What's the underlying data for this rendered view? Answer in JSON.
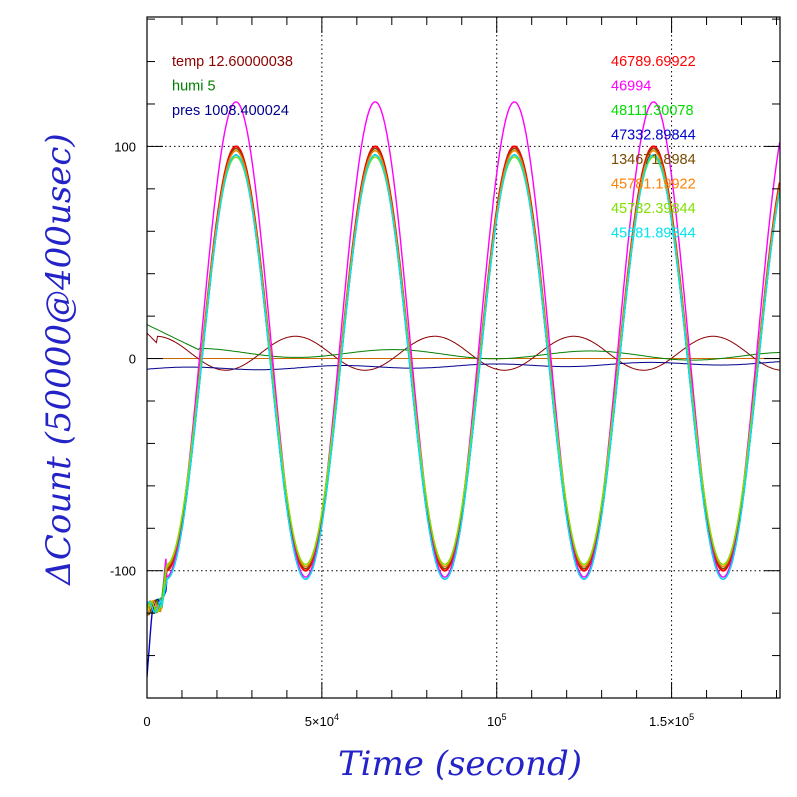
{
  "chart_data": {
    "type": "line",
    "xlabel": "Time (second)",
    "ylabel": "ΔCount (50000@400usec)",
    "xlim": [
      0,
      181000
    ],
    "ylim": [
      -160,
      161
    ],
    "x_ticks": [
      {
        "value": 0,
        "label": "0",
        "exp": ""
      },
      {
        "value": 50000,
        "label": "5×10",
        "exp": "4"
      },
      {
        "value": 100000,
        "label": "10",
        "exp": "5"
      },
      {
        "value": 150000,
        "label": "1.5×10",
        "exp": "5"
      }
    ],
    "y_ticks": [
      {
        "value": 100,
        "label": "100"
      },
      {
        "value": 0,
        "label": "0"
      },
      {
        "value": -100,
        "label": "-100"
      }
    ],
    "grid": "dotted",
    "legend_left": [
      {
        "text": "temp 12.60000038",
        "color": "#8b0000"
      },
      {
        "text": "humi 5",
        "color": "#008000"
      },
      {
        "text": "pres 1008.400024",
        "color": "#00008b"
      }
    ],
    "legend_right": [
      {
        "text": "46789.69922",
        "color": "#ff0000"
      },
      {
        "text": "46994",
        "color": "#ff00ff"
      },
      {
        "text": "48111.30078",
        "color": "#00dd00"
      },
      {
        "text": "47332.89844",
        "color": "#0000cc"
      },
      {
        "text": "134671.8984",
        "color": "#7a4a00"
      },
      {
        "text": "45781.19922",
        "color": "#ff8000"
      },
      {
        "text": "45732.39844",
        "color": "#80e000"
      },
      {
        "text": "45681.89844",
        "color": "#00e5ee"
      }
    ],
    "oscillation": {
      "x_zero_up": 15500,
      "period": 39800,
      "start_value": -118
    },
    "series": [
      {
        "name": "46789.69922",
        "color": "#ff0000",
        "amplitude": 100,
        "offset": 0,
        "baseline_up": -125
      },
      {
        "name": "46994",
        "color": "#ff00ff",
        "amplitude": 112,
        "offset": 18,
        "baseline_up": -122
      },
      {
        "name": "48111.30078",
        "color": "#00dd00",
        "amplitude": 98,
        "offset": 0,
        "baseline_up": -120
      },
      {
        "name": "47332.89844",
        "color": "#0000cc",
        "amplitude": 100,
        "offset": -8,
        "baseline_up": -150
      },
      {
        "name": "134671.8984",
        "color": "#7a4a00",
        "amplitude": 99,
        "offset": 0,
        "baseline_up": -124
      },
      {
        "name": "45781.19922",
        "color": "#ff8000",
        "amplitude": 98,
        "offset": 0,
        "baseline_up": -110
      },
      {
        "name": "45732.39844",
        "color": "#80e000",
        "amplitude": 96,
        "offset": -2,
        "baseline_up": -118
      },
      {
        "name": "45681.89844",
        "color": "#00e5ee",
        "amplitude": 100,
        "offset": -8,
        "baseline_up": -132
      }
    ],
    "env_series": [
      {
        "name": "temp 12.60000038",
        "color": "#8b0000",
        "kind": "temp"
      },
      {
        "name": "humi 5",
        "color": "#008000",
        "kind": "humi"
      },
      {
        "name": "pres 1008.400024",
        "color": "#00008b",
        "kind": "pres"
      }
    ],
    "reference_line": {
      "value": 0,
      "color": "#cc6a00"
    }
  }
}
